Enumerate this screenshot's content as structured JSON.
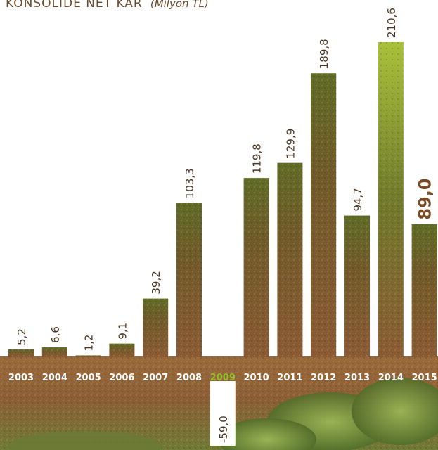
{
  "chart_data": {
    "type": "bar",
    "title": "KONSOLİDE NET KAR",
    "title_unit": "(Milyon TL)",
    "categories": [
      "2003",
      "2004",
      "2005",
      "2006",
      "2007",
      "2008",
      "2009",
      "2010",
      "2011",
      "2012",
      "2013",
      "2014",
      "2015"
    ],
    "values": [
      5.2,
      6.6,
      1.2,
      9.1,
      39.2,
      103.3,
      -59.0,
      119.8,
      129.9,
      189.8,
      94.7,
      210.6,
      89.0
    ],
    "value_labels": [
      "5,2",
      "6,6",
      "1,2",
      "9,1",
      "39,2",
      "103,3",
      "-59,0",
      "119,8",
      "129,9",
      "189,8",
      "94,7",
      "210,6",
      "89,0"
    ],
    "highlight_category": "2015",
    "negative_category_color": "#8fbf2a",
    "ylim": [
      -65,
      215
    ],
    "grid": false,
    "legend": false
  },
  "colors": {
    "bar_fill": "#7a5532",
    "label_band": "#9a6a3c",
    "background_top": "#ffffff",
    "foliage": "#5f7d2e"
  }
}
